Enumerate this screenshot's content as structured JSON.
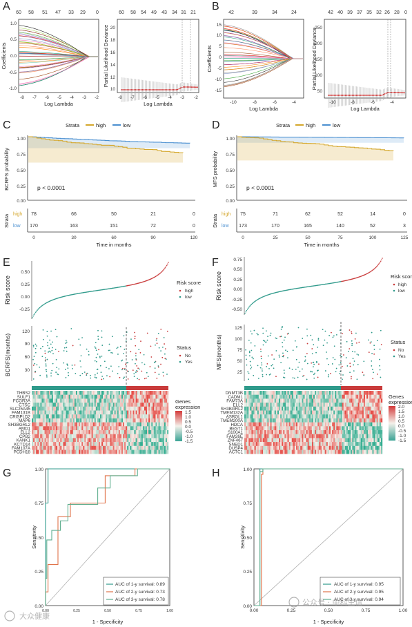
{
  "panel_letters": [
    "A",
    "B",
    "C",
    "D",
    "E",
    "F",
    "G",
    "H"
  ],
  "colors": {
    "high": "#d4a62a",
    "low": "#4a8fd0",
    "risk_high": "#c93b3b",
    "risk_low": "#2f9a8b",
    "roc1": "#2f9a8b",
    "roc2": "#e0734a",
    "roc3": "#2f9a8b",
    "path": "#333333",
    "cv": "#cc2222"
  },
  "panel_A": {
    "coef_top": [
      "60",
      "58",
      "51",
      "47",
      "33",
      "29",
      "0"
    ],
    "coef_top_x": [
      -8,
      -7.2,
      -6.2,
      -5.3,
      -4.3,
      -3.5,
      -2
    ],
    "coef_ylabel": "Coefficients",
    "coef_xlabel": "Log Lambda",
    "coef_yticks": [
      "1.0",
      "0.5",
      "0.0",
      "-0.5",
      "-1.0"
    ],
    "coef_xticks": [
      "-8",
      "-7",
      "-6",
      "-5",
      "-4",
      "-3",
      "-2"
    ],
    "cv_top": [
      "60",
      "58",
      "54",
      "49",
      "43",
      "34",
      "31",
      "21"
    ],
    "cv_ylabel": "Partial Likelihood Deviance",
    "cv_xlabel": "Log Lambda",
    "cv_yticks": [
      "20",
      "18",
      "16",
      "14",
      "12",
      "10"
    ],
    "cv_xticks": [
      "-8",
      "-7",
      "-6",
      "-5",
      "-4",
      "-3",
      "-2"
    ]
  },
  "panel_B": {
    "coef_top": [
      "42",
      "39",
      "34",
      "24"
    ],
    "coef_ylabel": "Coefficients",
    "coef_xlabel": "Log Lambda",
    "coef_yticks": [
      "15",
      "10",
      "5",
      "0",
      "-5",
      "-10",
      "-15"
    ],
    "coef_xticks": [
      "-10",
      "-8",
      "-6",
      "-4"
    ],
    "cv_top": [
      "42",
      "40",
      "39",
      "37",
      "35",
      "32",
      "26",
      "28",
      "0"
    ],
    "cv_ylabel": "Partial Likelihood Deviance",
    "cv_xlabel": "Log Lambda",
    "cv_yticks": [
      "250",
      "200",
      "150",
      "100",
      "50"
    ],
    "cv_xticks": [
      "-10",
      "-8",
      "-6",
      "-4"
    ]
  },
  "panel_C": {
    "legend_title": "Strata",
    "legend_high": "high",
    "legend_low": "low",
    "ylabel": "BCRFS probability",
    "yticks": [
      "1.00",
      "0.75",
      "0.50",
      "0.25",
      "0.00"
    ],
    "pval": "p < 0.0001",
    "risk_label": "Strata",
    "risk_high": [
      "78",
      "66",
      "50",
      "21",
      "0"
    ],
    "risk_low": [
      "170",
      "163",
      "151",
      "72",
      "0"
    ],
    "xticks": [
      "0",
      "30",
      "60",
      "90",
      "120"
    ],
    "xlabel": "Time in months"
  },
  "panel_D": {
    "legend_title": "Strata",
    "legend_high": "high",
    "legend_low": "low",
    "ylabel": "MFS probability",
    "yticks": [
      "1.00",
      "0.75",
      "0.50",
      "0.25",
      "0.00"
    ],
    "pval": "p < 0.0001",
    "risk_label": "Strata",
    "risk_high": [
      "75",
      "71",
      "62",
      "52",
      "14",
      "0"
    ],
    "risk_low": [
      "173",
      "170",
      "165",
      "140",
      "52",
      "3"
    ],
    "xticks": [
      "0",
      "25",
      "50",
      "75",
      "100",
      "125"
    ],
    "xlabel": "Time in months"
  },
  "panel_E": {
    "risk_ylabel": "Risk score",
    "risk_yticks": [
      "0.50",
      "0.25",
      "0.00",
      "-0.25"
    ],
    "risk_legend_title": "Risk score",
    "risk_legend": [
      "high",
      "low"
    ],
    "status_ylabel": "BCRFS(months)",
    "status_yticks": [
      "120",
      "90",
      "60",
      "30"
    ],
    "status_legend_title": "Status",
    "status_legend": [
      "No",
      "Yes"
    ],
    "genes": [
      "THBS2",
      "SULF1",
      "FCGR3A",
      "CTSC",
      "SLC25A45",
      "FAM131B",
      "CRISPLD2",
      "MAP6",
      "SH3BGRL2",
      "AMD1",
      "ELL2",
      "CPB2",
      "KANK1",
      "KCTD14",
      "FAM107A",
      "PCDH18"
    ],
    "heat_legend_title": "Genes expression",
    "heat_ticks": [
      "1.5",
      "1.0",
      "0.5",
      "0.0",
      "-0.5",
      "-1.0",
      "-1.5"
    ]
  },
  "panel_F": {
    "risk_ylabel": "Risk score",
    "risk_yticks": [
      "0.75",
      "0.50",
      "0.25",
      "0.00",
      "-0.25",
      "-0.50"
    ],
    "risk_legend_title": "Risk score",
    "risk_legend": [
      "high",
      "low"
    ],
    "status_ylabel": "MFS(months)",
    "status_yticks": [
      "125",
      "100",
      "75",
      "50",
      "25"
    ],
    "status_legend_title": "Status",
    "status_legend": [
      "No",
      "Yes"
    ],
    "genes": [
      "DNMT3B",
      "CADM1",
      "FAM73A",
      "ELL2",
      "SH3BGRL2",
      "TMEM132A",
      "ASRGL1",
      "TMEM200A",
      "HDCA",
      "BEST1",
      "S100A1",
      "FAM26E",
      "ZNF467",
      "SNED1",
      "DUSP4",
      "ACTC1"
    ],
    "heat_legend_title": "Genes expression",
    "heat_ticks": [
      "2.0",
      "1.5",
      "1.0",
      "0.5",
      "0.0",
      "-0.5",
      "-1.0",
      "-1.5"
    ]
  },
  "panel_G": {
    "ylabel": "Sensitivity",
    "xlabel": "1 - Specificity",
    "yticks": [
      "1.00",
      "0.75",
      "0.50",
      "0.25",
      "0.00"
    ],
    "xticks": [
      "0.00",
      "0.25",
      "0.50",
      "0.75",
      "1.00"
    ],
    "auc": [
      "AUC of 1-y survival: 0.89",
      "AUC of 2-y survival: 0.73",
      "AUC of 3-y survival: 0.78"
    ]
  },
  "panel_H": {
    "ylabel": "Sensitivity",
    "xlabel": "1 - Specificity",
    "yticks": [
      "1.00",
      "0.75",
      "0.50",
      "0.25",
      "0.00"
    ],
    "xticks": [
      "0.00",
      "0.25",
      "0.50",
      "0.75",
      "1.00"
    ],
    "auc": [
      "AUC of 1-y survival: 0.95",
      "AUC of 2-y survival: 0.95",
      "AUC of 3-y survival: 0.94"
    ]
  },
  "watermarks": [
    "大众健康",
    "公众号 · 中科生信"
  ]
}
